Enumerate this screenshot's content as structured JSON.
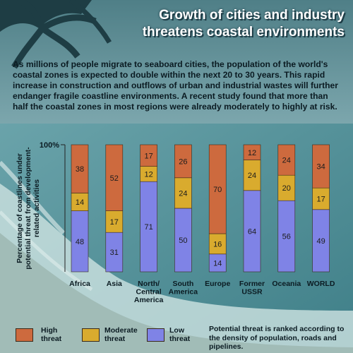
{
  "header": {
    "title_line1": "Growth of cities and industry",
    "title_line2": "threatens coastal environments"
  },
  "intro_text": "As millions of people migrate to seaboard cities, the population of the world's coastal zones is expected to double within the next 20 to 30 years. This rapid increase in construction and outflows of urban and industrial wastes will further endanger fragile coastline environments. A recent study found that more than half the coastal zones in most regions were already moderately to highly at risk.",
  "chart_data": {
    "type": "bar",
    "stacked": true,
    "categories": [
      "Africa",
      "Asia",
      "North/\nCentral\nAmerica",
      "South\nAmerica",
      "Europe",
      "Former\nUSSR",
      "Oceania",
      "WORLD"
    ],
    "series": [
      {
        "name": "Low threat",
        "values": [
          48,
          31,
          71,
          50,
          14,
          64,
          56,
          49
        ]
      },
      {
        "name": "Moderate threat",
        "values": [
          14,
          17,
          12,
          24,
          16,
          24,
          20,
          17
        ]
      },
      {
        "name": "High threat",
        "values": [
          38,
          52,
          17,
          26,
          70,
          12,
          24,
          34
        ]
      }
    ],
    "ylabel": "Percentage of coastlines under potential threat from development-related activities",
    "ylim": [
      0,
      100
    ],
    "ytick_label": "100%",
    "colors": {
      "Low threat": "#7f83e6",
      "Moderate threat": "#d9ab2e",
      "High threat": "#cd6a3e"
    }
  },
  "legend": [
    {
      "label_line1": "High",
      "label_line2": "threat",
      "color": "#cd6a3e"
    },
    {
      "label_line1": "Moderate",
      "label_line2": "threat",
      "color": "#d9ab2e"
    },
    {
      "label_line1": "Low",
      "label_line2": "threat",
      "color": "#7f83e6"
    }
  ],
  "footnote": "Potential threat is ranked according to the density of population, roads and pipelines."
}
